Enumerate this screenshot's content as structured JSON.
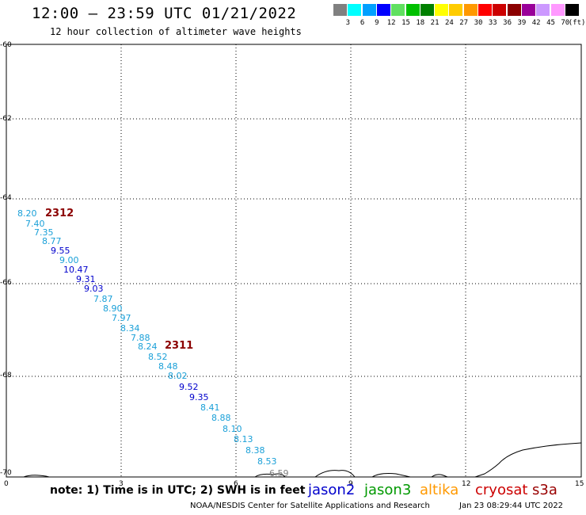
{
  "title": "12:00 – 23:59 UTC 01/21/2022",
  "subtitle": "12 hour collection of altimeter wave heights",
  "legend": {
    "colors": [
      "#808080",
      "#00ffff",
      "#00a0ff",
      "#0000ff",
      "#60e060",
      "#00c000",
      "#008000",
      "#ffff00",
      "#ffcc00",
      "#ff9900",
      "#ff0000",
      "#cc0000",
      "#8b0000",
      "#990099",
      "#cc99ff",
      "#ff99ff",
      "#000000"
    ],
    "labels": [
      "3",
      "6",
      "9",
      "12",
      "15",
      "18",
      "21",
      "24",
      "27",
      "30",
      "33",
      "36",
      "39",
      "42",
      "45",
      "70"
    ],
    "unit": "(ft)"
  },
  "y_labels": [
    "-60",
    "-62",
    "-64",
    "-66",
    "-68",
    "-70"
  ],
  "x_labels": [
    "0",
    "3",
    "6",
    "9",
    "12",
    "15"
  ],
  "passes": [
    {
      "label": "2312"
    },
    {
      "label": "2311"
    }
  ],
  "wave_heights": [
    {
      "text": "8.20",
      "color": "#1aa0d8"
    },
    {
      "text": "7.40",
      "color": "#1aa0d8"
    },
    {
      "text": "7.35",
      "color": "#1aa0d8"
    },
    {
      "text": "8.77",
      "color": "#1aa0d8"
    },
    {
      "text": "9.55",
      "color": "#0000cc"
    },
    {
      "text": "9.00",
      "color": "#1aa0d8"
    },
    {
      "text": "10.47",
      "color": "#0000cc"
    },
    {
      "text": "9.31",
      "color": "#0000cc"
    },
    {
      "text": "9.03",
      "color": "#0000cc"
    },
    {
      "text": "7.87",
      "color": "#1aa0d8"
    },
    {
      "text": "8.90",
      "color": "#1aa0d8"
    },
    {
      "text": "7.97",
      "color": "#1aa0d8"
    },
    {
      "text": "8.34",
      "color": "#1aa0d8"
    },
    {
      "text": "7.88",
      "color": "#1aa0d8"
    },
    {
      "text": "8.24",
      "color": "#1aa0d8"
    },
    {
      "text": "8.52",
      "color": "#1aa0d8"
    },
    {
      "text": "8.48",
      "color": "#1aa0d8"
    },
    {
      "text": "8.02",
      "color": "#1aa0d8"
    },
    {
      "text": "9.52",
      "color": "#0000cc"
    },
    {
      "text": "9.35",
      "color": "#0000cc"
    },
    {
      "text": "8.41",
      "color": "#1aa0d8"
    },
    {
      "text": "8.88",
      "color": "#1aa0d8"
    },
    {
      "text": "8.10",
      "color": "#1aa0d8"
    },
    {
      "text": "8.13",
      "color": "#1aa0d8"
    },
    {
      "text": "8.38",
      "color": "#1aa0d8"
    },
    {
      "text": "8.53",
      "color": "#1aa0d8"
    },
    {
      "text": "6.59",
      "color": "#808080"
    }
  ],
  "note": "note: 1) Time is in UTC; 2) SWH is in feet",
  "satellites": [
    {
      "name": "jason2",
      "color": "#0000cc"
    },
    {
      "name": "jason3",
      "color": "#009900"
    },
    {
      "name": "altika",
      "color": "#ff9900"
    },
    {
      "name": "cryosat",
      "color": "#cc0000"
    },
    {
      "name": "s3a",
      "color": "#990000"
    }
  ],
  "footer": "NOAA/NESDIS Center for Satellite Applications and Research",
  "footer_date": "Jan 23 08:29:44 UTC 2022"
}
